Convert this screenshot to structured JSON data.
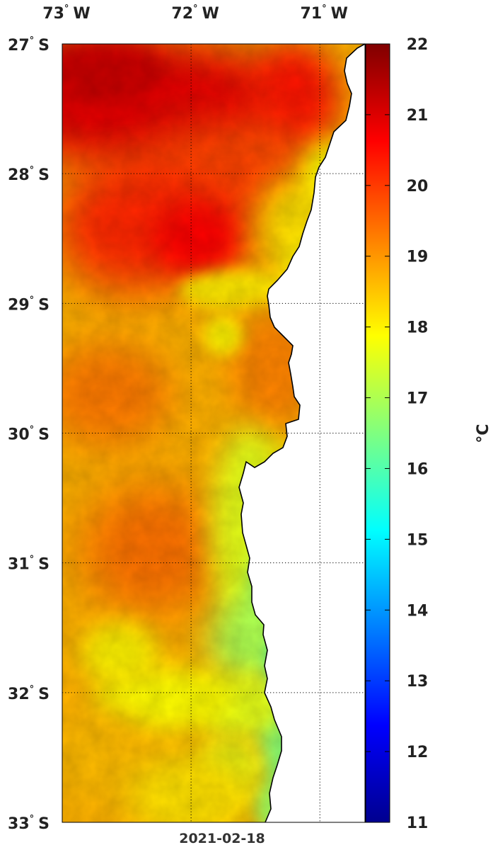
{
  "map": {
    "date": "2021-02-18",
    "lon_ticks": [
      {
        "value": -73,
        "deg": "73",
        "hemi": "W"
      },
      {
        "value": -72,
        "deg": "72",
        "hemi": "W"
      },
      {
        "value": -71,
        "deg": "71",
        "hemi": "W"
      }
    ],
    "lat_ticks": [
      {
        "value": -27,
        "deg": "27",
        "hemi": "S"
      },
      {
        "value": -28,
        "deg": "28",
        "hemi": "S"
      },
      {
        "value": -29,
        "deg": "29",
        "hemi": "S"
      },
      {
        "value": -30,
        "deg": "30",
        "hemi": "S"
      },
      {
        "value": -31,
        "deg": "31",
        "hemi": "S"
      },
      {
        "value": -32,
        "deg": "32",
        "hemi": "S"
      },
      {
        "value": -33,
        "deg": "33",
        "hemi": "S"
      }
    ],
    "lon_range": [
      -73.0,
      -70.65
    ],
    "lat_range": [
      -33,
      -27
    ],
    "grid": true
  },
  "colorbar": {
    "min": 11,
    "max": 22,
    "ticks": [
      11,
      12,
      13,
      14,
      15,
      16,
      17,
      18,
      19,
      20,
      21,
      22
    ],
    "unit_label": "°C",
    "colormap": "jet"
  },
  "colors": {
    "coastline": "#000000",
    "land": "#ffffff"
  }
}
